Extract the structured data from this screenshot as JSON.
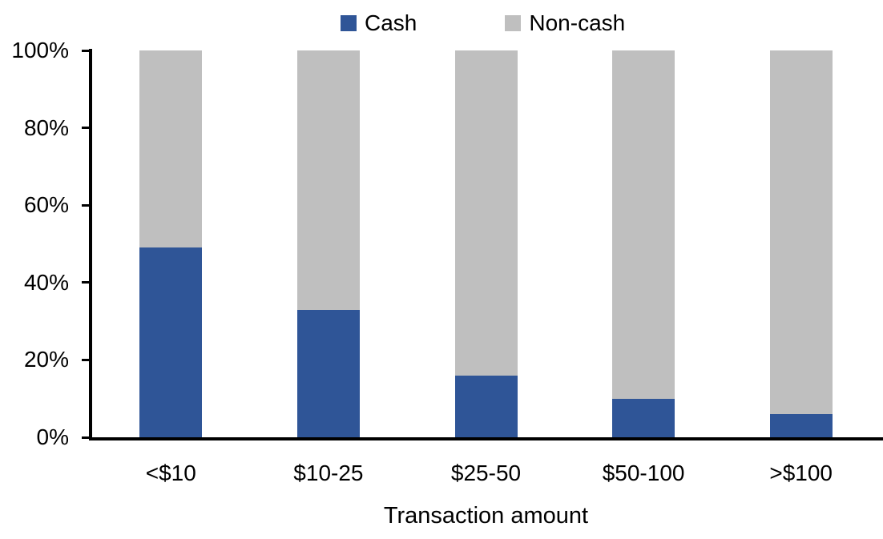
{
  "chart_data": {
    "type": "bar",
    "stacked": true,
    "orientation": "vertical",
    "title": "",
    "xlabel": "Transaction amount",
    "ylabel": "",
    "categories": [
      "<$10",
      "$10-25",
      "$25-50",
      "$50-100",
      ">$100"
    ],
    "series": [
      {
        "name": "Cash",
        "color": "#2F5597",
        "values": [
          49,
          33,
          16,
          10,
          6
        ]
      },
      {
        "name": "Non-cash",
        "color": "#BFBFBF",
        "values": [
          51,
          67,
          84,
          90,
          94
        ]
      }
    ],
    "ylim": [
      0,
      100
    ],
    "ytick_step": 20,
    "ytick_labels": [
      "0%",
      "20%",
      "40%",
      "60%",
      "80%",
      "100%"
    ],
    "grid": false,
    "legend_position": "top-center",
    "axis_color": "#000000",
    "text_color": "#000000",
    "background_color": "#FFFFFF"
  }
}
